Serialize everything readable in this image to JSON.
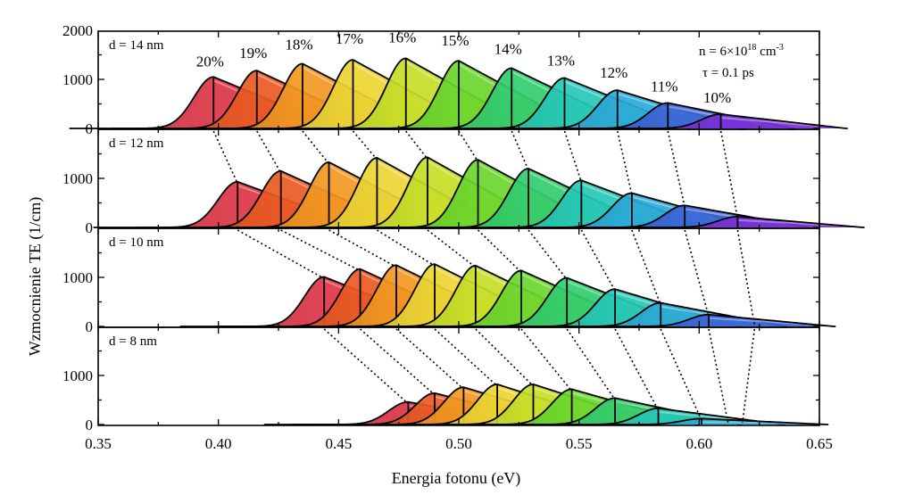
{
  "chart_data": {
    "type": "area",
    "xlabel": "Energia fotonu (eV)",
    "ylabel": "Wzmocnienie TE (1/cm)",
    "xlim": [
      0.35,
      0.65
    ],
    "x_ticks": [
      "0.35",
      "0.40",
      "0.45",
      "0.50",
      "0.55",
      "0.60",
      "0.65"
    ],
    "ylim": [
      0,
      2000
    ],
    "y_ticks_top": [
      "0",
      "1000",
      "2000"
    ],
    "y_ticks": [
      "0",
      "1000"
    ],
    "annotation": {
      "n_prefix": "n = 6×10",
      "n_exp": "18",
      "n_unit": " cm",
      "n_unit_exp": "-3",
      "tau": "τ = 0.1 ps"
    },
    "compositions": [
      "20%",
      "19%",
      "18%",
      "17%",
      "16%",
      "15%",
      "14%",
      "13%",
      "12%",
      "11%",
      "10%"
    ],
    "colors": [
      "#dc3545",
      "#ea5a22",
      "#f29822",
      "#ecd534",
      "#c6de28",
      "#6ad62c",
      "#33cc6e",
      "#26c7b7",
      "#2ca9d8",
      "#3c64d6",
      "#7a2fd8"
    ],
    "panels": [
      {
        "label": "d = 14 nm",
        "series": [
          {
            "name": "20%",
            "peak_energy": 0.398,
            "peak_gain": 1050
          },
          {
            "name": "19%",
            "peak_energy": 0.416,
            "peak_gain": 1180
          },
          {
            "name": "18%",
            "peak_energy": 0.435,
            "peak_gain": 1320
          },
          {
            "name": "17%",
            "peak_energy": 0.456,
            "peak_gain": 1400
          },
          {
            "name": "16%",
            "peak_energy": 0.478,
            "peak_gain": 1430
          },
          {
            "name": "15%",
            "peak_energy": 0.5,
            "peak_gain": 1380
          },
          {
            "name": "14%",
            "peak_energy": 0.522,
            "peak_gain": 1230
          },
          {
            "name": "13%",
            "peak_energy": 0.544,
            "peak_gain": 1030
          },
          {
            "name": "12%",
            "peak_energy": 0.566,
            "peak_gain": 780
          },
          {
            "name": "11%",
            "peak_energy": 0.587,
            "peak_gain": 520
          },
          {
            "name": "10%",
            "peak_energy": 0.609,
            "peak_gain": 290
          }
        ]
      },
      {
        "label": "d = 12 nm",
        "series": [
          {
            "name": "20%",
            "peak_energy": 0.408,
            "peak_gain": 930
          },
          {
            "name": "19%",
            "peak_energy": 0.426,
            "peak_gain": 1150
          },
          {
            "name": "18%",
            "peak_energy": 0.446,
            "peak_gain": 1330
          },
          {
            "name": "17%",
            "peak_energy": 0.466,
            "peak_gain": 1420
          },
          {
            "name": "16%",
            "peak_energy": 0.487,
            "peak_gain": 1430
          },
          {
            "name": "15%",
            "peak_energy": 0.508,
            "peak_gain": 1380
          },
          {
            "name": "14%",
            "peak_energy": 0.529,
            "peak_gain": 1200
          },
          {
            "name": "13%",
            "peak_energy": 0.551,
            "peak_gain": 960
          },
          {
            "name": "12%",
            "peak_energy": 0.572,
            "peak_gain": 700
          },
          {
            "name": "11%",
            "peak_energy": 0.594,
            "peak_gain": 450
          },
          {
            "name": "10%",
            "peak_energy": 0.616,
            "peak_gain": 220
          }
        ]
      },
      {
        "label": "d = 10 nm",
        "series": [
          {
            "name": "20%",
            "peak_energy": 0.444,
            "peak_gain": 1010
          },
          {
            "name": "19%",
            "peak_energy": 0.459,
            "peak_gain": 1170
          },
          {
            "name": "18%",
            "peak_energy": 0.474,
            "peak_gain": 1250
          },
          {
            "name": "17%",
            "peak_energy": 0.49,
            "peak_gain": 1270
          },
          {
            "name": "16%",
            "peak_energy": 0.507,
            "peak_gain": 1240
          },
          {
            "name": "15%",
            "peak_energy": 0.526,
            "peak_gain": 1140
          },
          {
            "name": "14%",
            "peak_energy": 0.545,
            "peak_gain": 990
          },
          {
            "name": "13%",
            "peak_energy": 0.565,
            "peak_gain": 760
          },
          {
            "name": "12%",
            "peak_energy": 0.584,
            "peak_gain": 480
          },
          {
            "name": "11%",
            "peak_energy": 0.604,
            "peak_gain": 240
          },
          {
            "name": "10%",
            "peak_energy": 0.623,
            "peak_gain": 0
          }
        ]
      },
      {
        "label": "d = 8 nm",
        "series": [
          {
            "name": "20%",
            "peak_energy": 0.479,
            "peak_gain": 460
          },
          {
            "name": "19%",
            "peak_energy": 0.49,
            "peak_gain": 640
          },
          {
            "name": "18%",
            "peak_energy": 0.502,
            "peak_gain": 760
          },
          {
            "name": "17%",
            "peak_energy": 0.516,
            "peak_gain": 820
          },
          {
            "name": "16%",
            "peak_energy": 0.531,
            "peak_gain": 820
          },
          {
            "name": "15%",
            "peak_energy": 0.547,
            "peak_gain": 720
          },
          {
            "name": "14%",
            "peak_energy": 0.565,
            "peak_gain": 540
          },
          {
            "name": "13%",
            "peak_energy": 0.583,
            "peak_gain": 330
          },
          {
            "name": "12%",
            "peak_energy": 0.601,
            "peak_gain": 120
          },
          {
            "name": "11%",
            "peak_energy": 0.612,
            "peak_gain": 0
          },
          {
            "name": "10%",
            "peak_energy": 0.618,
            "peak_gain": 0
          }
        ]
      }
    ]
  }
}
